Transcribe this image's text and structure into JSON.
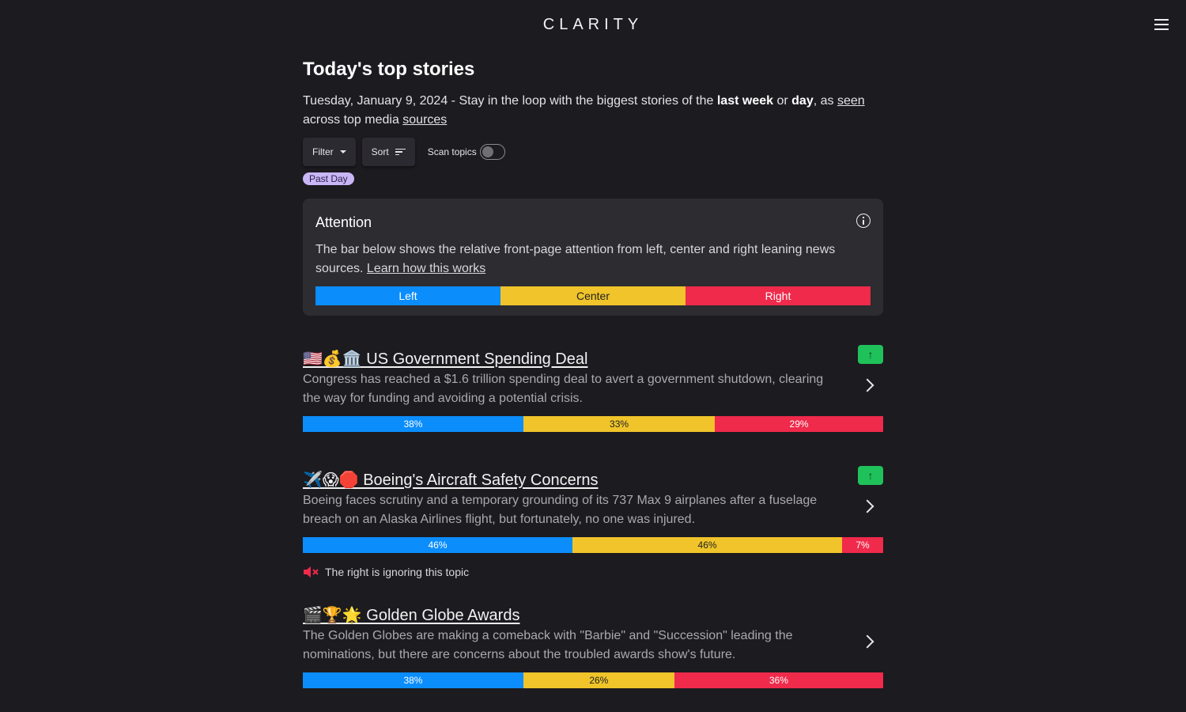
{
  "header": {
    "logo": "CLARITY",
    "menu_icon": "hamburger-menu-icon"
  },
  "page": {
    "title": "Today's top stories",
    "subtitle_prefix": "Tuesday, January 9, 2024 - Stay in the loop with the biggest stories of the ",
    "subtitle_week": "last week",
    "subtitle_or": " or ",
    "subtitle_day": "day",
    "subtitle_as": ", as ",
    "subtitle_seen": "seen",
    "subtitle_across": " across top media ",
    "subtitle_sources": "sources"
  },
  "controls": {
    "filter_label": "Filter",
    "sort_label": "Sort",
    "scan_label": "Scan topics",
    "scan_enabled": false,
    "active_chip": "Past Day"
  },
  "attention": {
    "title": "Attention",
    "description": "The bar below shows the relative front-page attention from left, center and right leaning news sources. ",
    "link": "Learn how this works",
    "legend": {
      "left": "Left",
      "center": "Center",
      "right": "Right"
    }
  },
  "colors": {
    "left": "#0b8dfc",
    "center": "#f0c42a",
    "right": "#ef2a4b",
    "trend_up": "#1fc25a"
  },
  "stories": [
    {
      "title": "🇺🇸💰🏛️ US Government Spending Deal",
      "description": "Congress has reached a $1.6 trillion spending deal to avert a government shutdown, clearing the way for funding and avoiding a potential crisis.",
      "trend": "↑",
      "left": 38,
      "center": 33,
      "right": 29,
      "left_label": "38%",
      "center_label": "33%",
      "right_label": "29%"
    },
    {
      "title": "✈️😱🛑 Boeing's Aircraft Safety Concerns",
      "description": "Boeing faces scrutiny and a temporary grounding of its 737 Max 9 airplanes after a fuselage breach on an Alaska Airlines flight, but fortunately, no one was injured.",
      "trend": "↑",
      "left": 46,
      "center": 46,
      "right": 7,
      "left_label": "46%",
      "center_label": "46%",
      "right_label": "7%",
      "ignore_note": "The right is ignoring this topic"
    },
    {
      "title": "🎬🏆🌟 Golden Globe Awards",
      "description": "The Golden Globes are making a comeback with \"Barbie\" and \"Succession\" leading the nominations, but there are concerns about the troubled awards show's future.",
      "left": 38,
      "center": 26,
      "right": 36,
      "left_label": "38%",
      "center_label": "26%",
      "right_label": "36%"
    }
  ]
}
